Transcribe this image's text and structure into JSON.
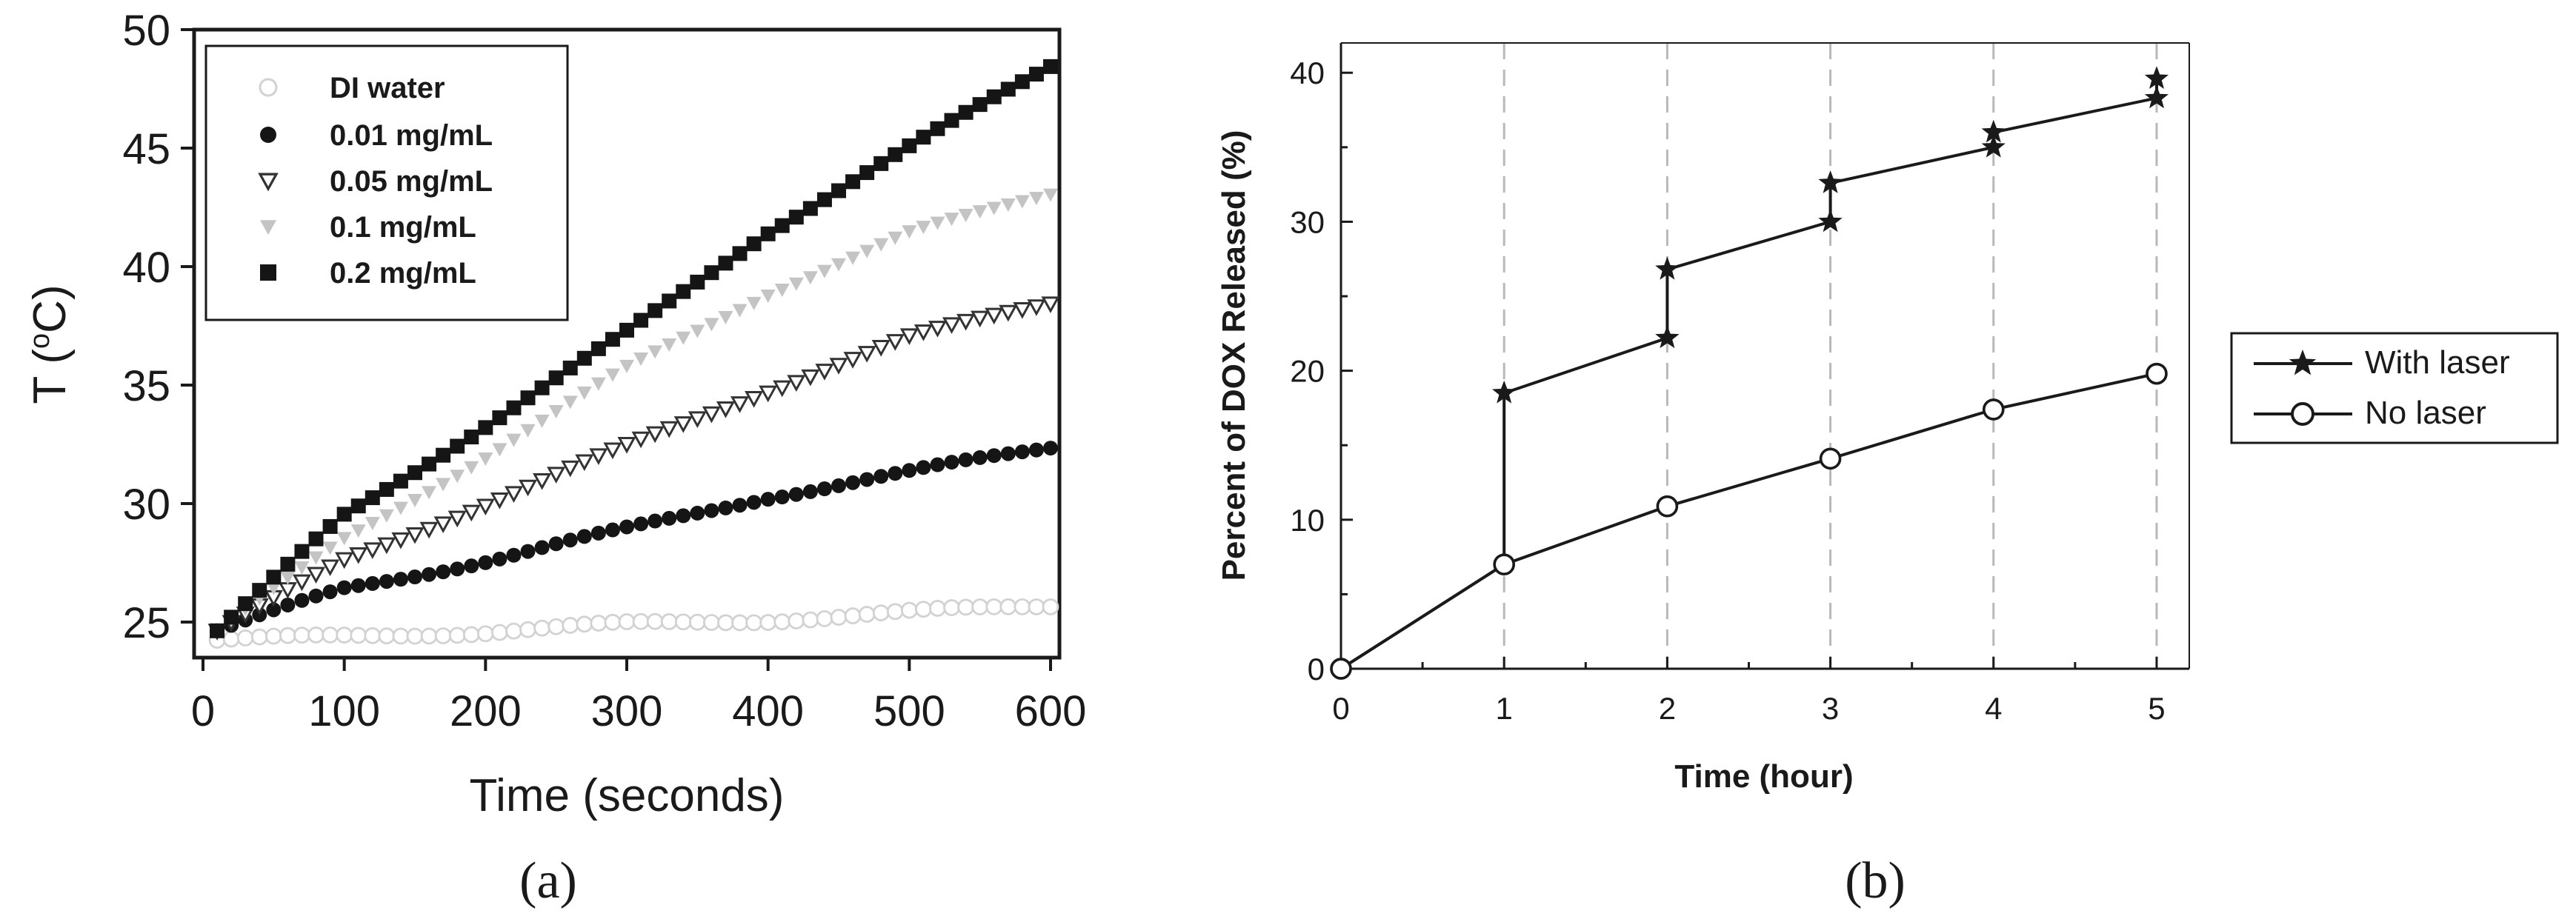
{
  "chart_data": [
    {
      "type": "scatter",
      "panel_label": "(a)",
      "title": "",
      "xlabel": "Time (seconds)",
      "ylabel_prefix": "T (",
      "ylabel_sup": "o",
      "ylabel_suffix": "C)",
      "xlim": [
        0,
        600
      ],
      "ylim": [
        23.5,
        50
      ],
      "xticks": [
        0,
        100,
        200,
        300,
        400,
        500,
        600
      ],
      "yticks": [
        25,
        30,
        35,
        40,
        45,
        50
      ],
      "grid": false,
      "legend_position": "top-left",
      "x_start": 10,
      "x_step": 10,
      "x_end": 600,
      "series": [
        {
          "name": "DI water",
          "marker": "open-circle",
          "color": "#d2d2d2",
          "anchors_x": [
            10,
            100,
            200,
            300,
            400,
            500,
            600
          ],
          "anchors_y": [
            24.2,
            24.4,
            24.6,
            24.9,
            25.1,
            25.4,
            25.7
          ]
        },
        {
          "name": "0.01 mg/mL",
          "marker": "filled-circle",
          "color": "#151515",
          "anchors_x": [
            10,
            100,
            200,
            300,
            400,
            500,
            600
          ],
          "anchors_y": [
            24.6,
            26.4,
            27.6,
            28.9,
            30.3,
            31.3,
            32.4
          ]
        },
        {
          "name": "0.05 mg/mL",
          "marker": "open-triangle-down",
          "color": "#333333",
          "anchors_x": [
            10,
            100,
            200,
            300,
            400,
            500,
            600
          ],
          "anchors_y": [
            24.6,
            27.6,
            30.0,
            32.4,
            34.8,
            37.0,
            38.5
          ]
        },
        {
          "name": "0.1 mg/mL",
          "marker": "filled-triangle-down",
          "color": "#c4c4c4",
          "anchors_x": [
            10,
            100,
            200,
            300,
            400,
            500,
            600
          ],
          "anchors_y": [
            24.6,
            28.5,
            32.0,
            35.7,
            38.9,
            41.4,
            43.1
          ]
        },
        {
          "name": "0.2 mg/mL",
          "marker": "filled-square",
          "color": "#151515",
          "anchors_x": [
            10,
            100,
            200,
            300,
            400,
            500,
            600
          ],
          "anchors_y": [
            24.6,
            29.5,
            33.3,
            37.2,
            41.5,
            45.0,
            48.5
          ]
        }
      ]
    },
    {
      "type": "line",
      "panel_label": "(b)",
      "title": "",
      "xlabel": "Time (hour)",
      "ylabel": "Percent of DOX Released (%)",
      "xlim": [
        0,
        5.2
      ],
      "ylim": [
        0,
        42
      ],
      "xticks": [
        0,
        1,
        2,
        3,
        4,
        5
      ],
      "yticks": [
        0,
        10,
        20,
        30,
        40
      ],
      "grid": "vertical-dashed",
      "legend_position": "outside-right",
      "series": [
        {
          "name": "With laser",
          "marker": "star",
          "color": "#1a1a1a",
          "x": [
            0,
            1,
            1,
            2,
            2,
            3,
            3,
            4,
            4,
            5,
            5
          ],
          "y": [
            0,
            7,
            18.5,
            22.2,
            26.8,
            30,
            32.6,
            35,
            36,
            38.3,
            39.6
          ]
        },
        {
          "name": "No laser",
          "marker": "open-circle",
          "color": "#1a1a1a",
          "x": [
            0,
            1,
            2,
            3,
            4,
            5
          ],
          "y": [
            0,
            7,
            10.9,
            14.1,
            17.4,
            19.8
          ]
        }
      ]
    }
  ]
}
